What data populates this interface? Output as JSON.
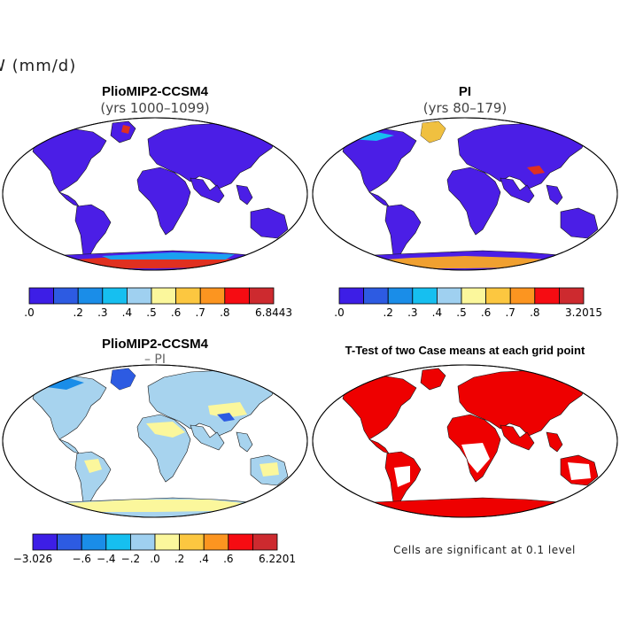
{
  "main_title": "JJA SNOW (mm/d)",
  "colors": {
    "ocean": "#ffffff",
    "outline": "#000000",
    "land_low": "#4b1ee6",
    "significant": "#ee0000"
  },
  "panels": [
    {
      "id": "pliomip",
      "title": "PlioMIP2-CCSM4",
      "subtitle": "(yrs 1000–1099)",
      "base_color": "#4b1ee6",
      "colorbar": {
        "colors": [
          "#3d1ee6",
          "#2d5be2",
          "#1a8de8",
          "#16bff0",
          "#9fd0f0",
          "#fbf79c",
          "#fcc740",
          "#fc9520",
          "#f60c12",
          "#cd2a2f"
        ],
        "labels": [
          ".0",
          "",
          ".2",
          ".3",
          ".4",
          ".5",
          ".6",
          ".7",
          ".8",
          "6.8443"
        ]
      }
    },
    {
      "id": "pi",
      "title": "PI",
      "subtitle": "(yrs 80–179)",
      "base_color": "#4b1ee6",
      "colorbar": {
        "colors": [
          "#3d1ee6",
          "#2d5be2",
          "#1a8de8",
          "#16bff0",
          "#9fd0f0",
          "#fbf79c",
          "#fcc740",
          "#fc9520",
          "#f60c12",
          "#cd2a2f"
        ],
        "labels": [
          ".0",
          "",
          ".2",
          ".3",
          ".4",
          ".5",
          ".6",
          ".7",
          ".8",
          "3.2015"
        ]
      }
    },
    {
      "id": "diff",
      "title": "PlioMIP2-CCSM4",
      "subtitle": "– PI",
      "base_color": "#a7d3ee",
      "colorbar": {
        "colors": [
          "#3d1ee6",
          "#2d5be2",
          "#1a8de8",
          "#16bff0",
          "#9fd0f0",
          "#fbf79c",
          "#fcc740",
          "#fc9520",
          "#f60c12",
          "#cd2a2f"
        ],
        "labels": [
          "−3.026",
          "",
          "−.6",
          "−.4",
          "−.2",
          ".0",
          ".2",
          ".4",
          ".6",
          "6.2201"
        ]
      }
    },
    {
      "id": "ttest",
      "title": "T-Test of two Case means at each grid point",
      "subtitle": "",
      "base_color": "#ffffff",
      "note": "Cells are significant at 0.1 level"
    }
  ]
}
